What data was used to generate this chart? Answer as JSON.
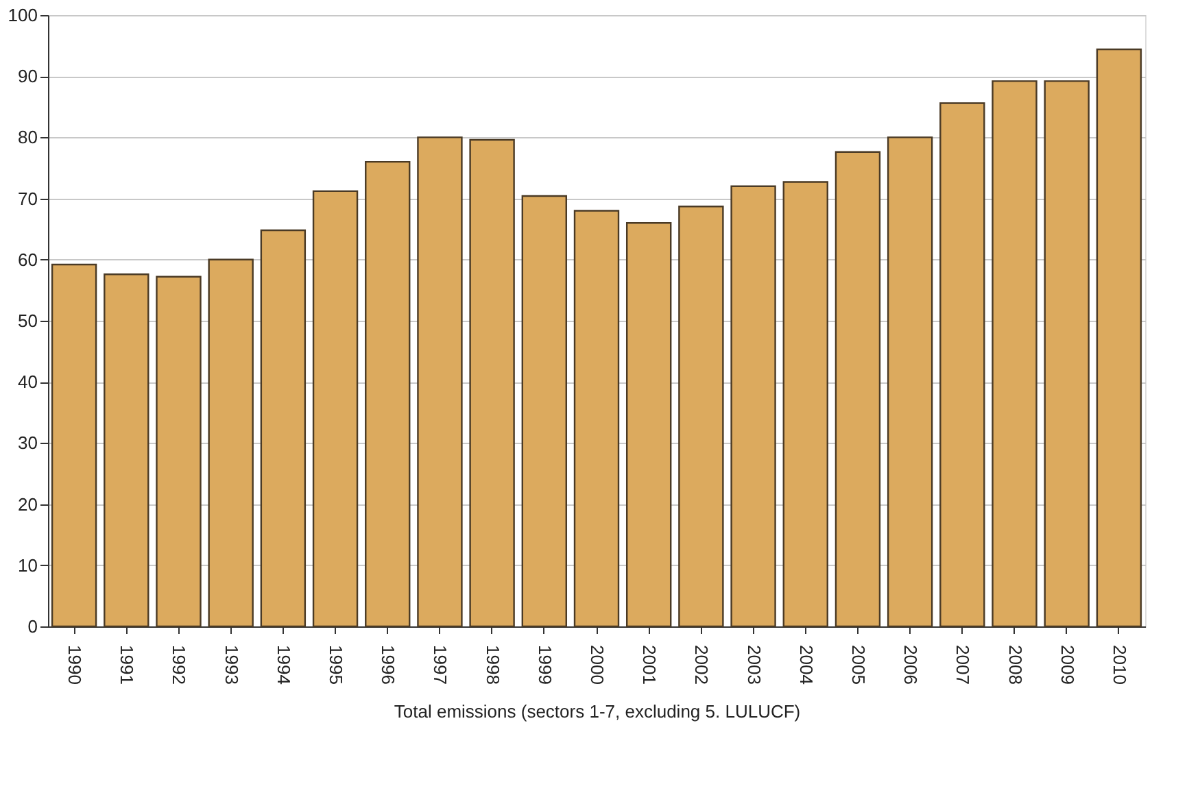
{
  "chart_data": {
    "type": "bar",
    "xlabel": "Total emissions (sectors 1-7, excluding 5. LULUCF)",
    "categories": [
      "1990",
      "1991",
      "1992",
      "1993",
      "1994",
      "1995",
      "1996",
      "1997",
      "1998",
      "1999",
      "2000",
      "2001",
      "2002",
      "2003",
      "2004",
      "2005",
      "2006",
      "2007",
      "2008",
      "2009",
      "2010"
    ],
    "values": [
      59.2,
      57.6,
      57.2,
      60,
      64.8,
      71.2,
      76,
      80,
      79.6,
      70.4,
      68,
      66,
      68.7,
      72,
      72.7,
      77.6,
      80,
      85.6,
      89.2,
      89.2,
      94.4
    ],
    "color": "#dcaa5e",
    "ylim": [
      0,
      100
    ],
    "yticks": [
      0,
      10,
      20,
      30,
      40,
      50,
      60,
      70,
      80,
      90,
      100
    ],
    "grid": "y"
  }
}
